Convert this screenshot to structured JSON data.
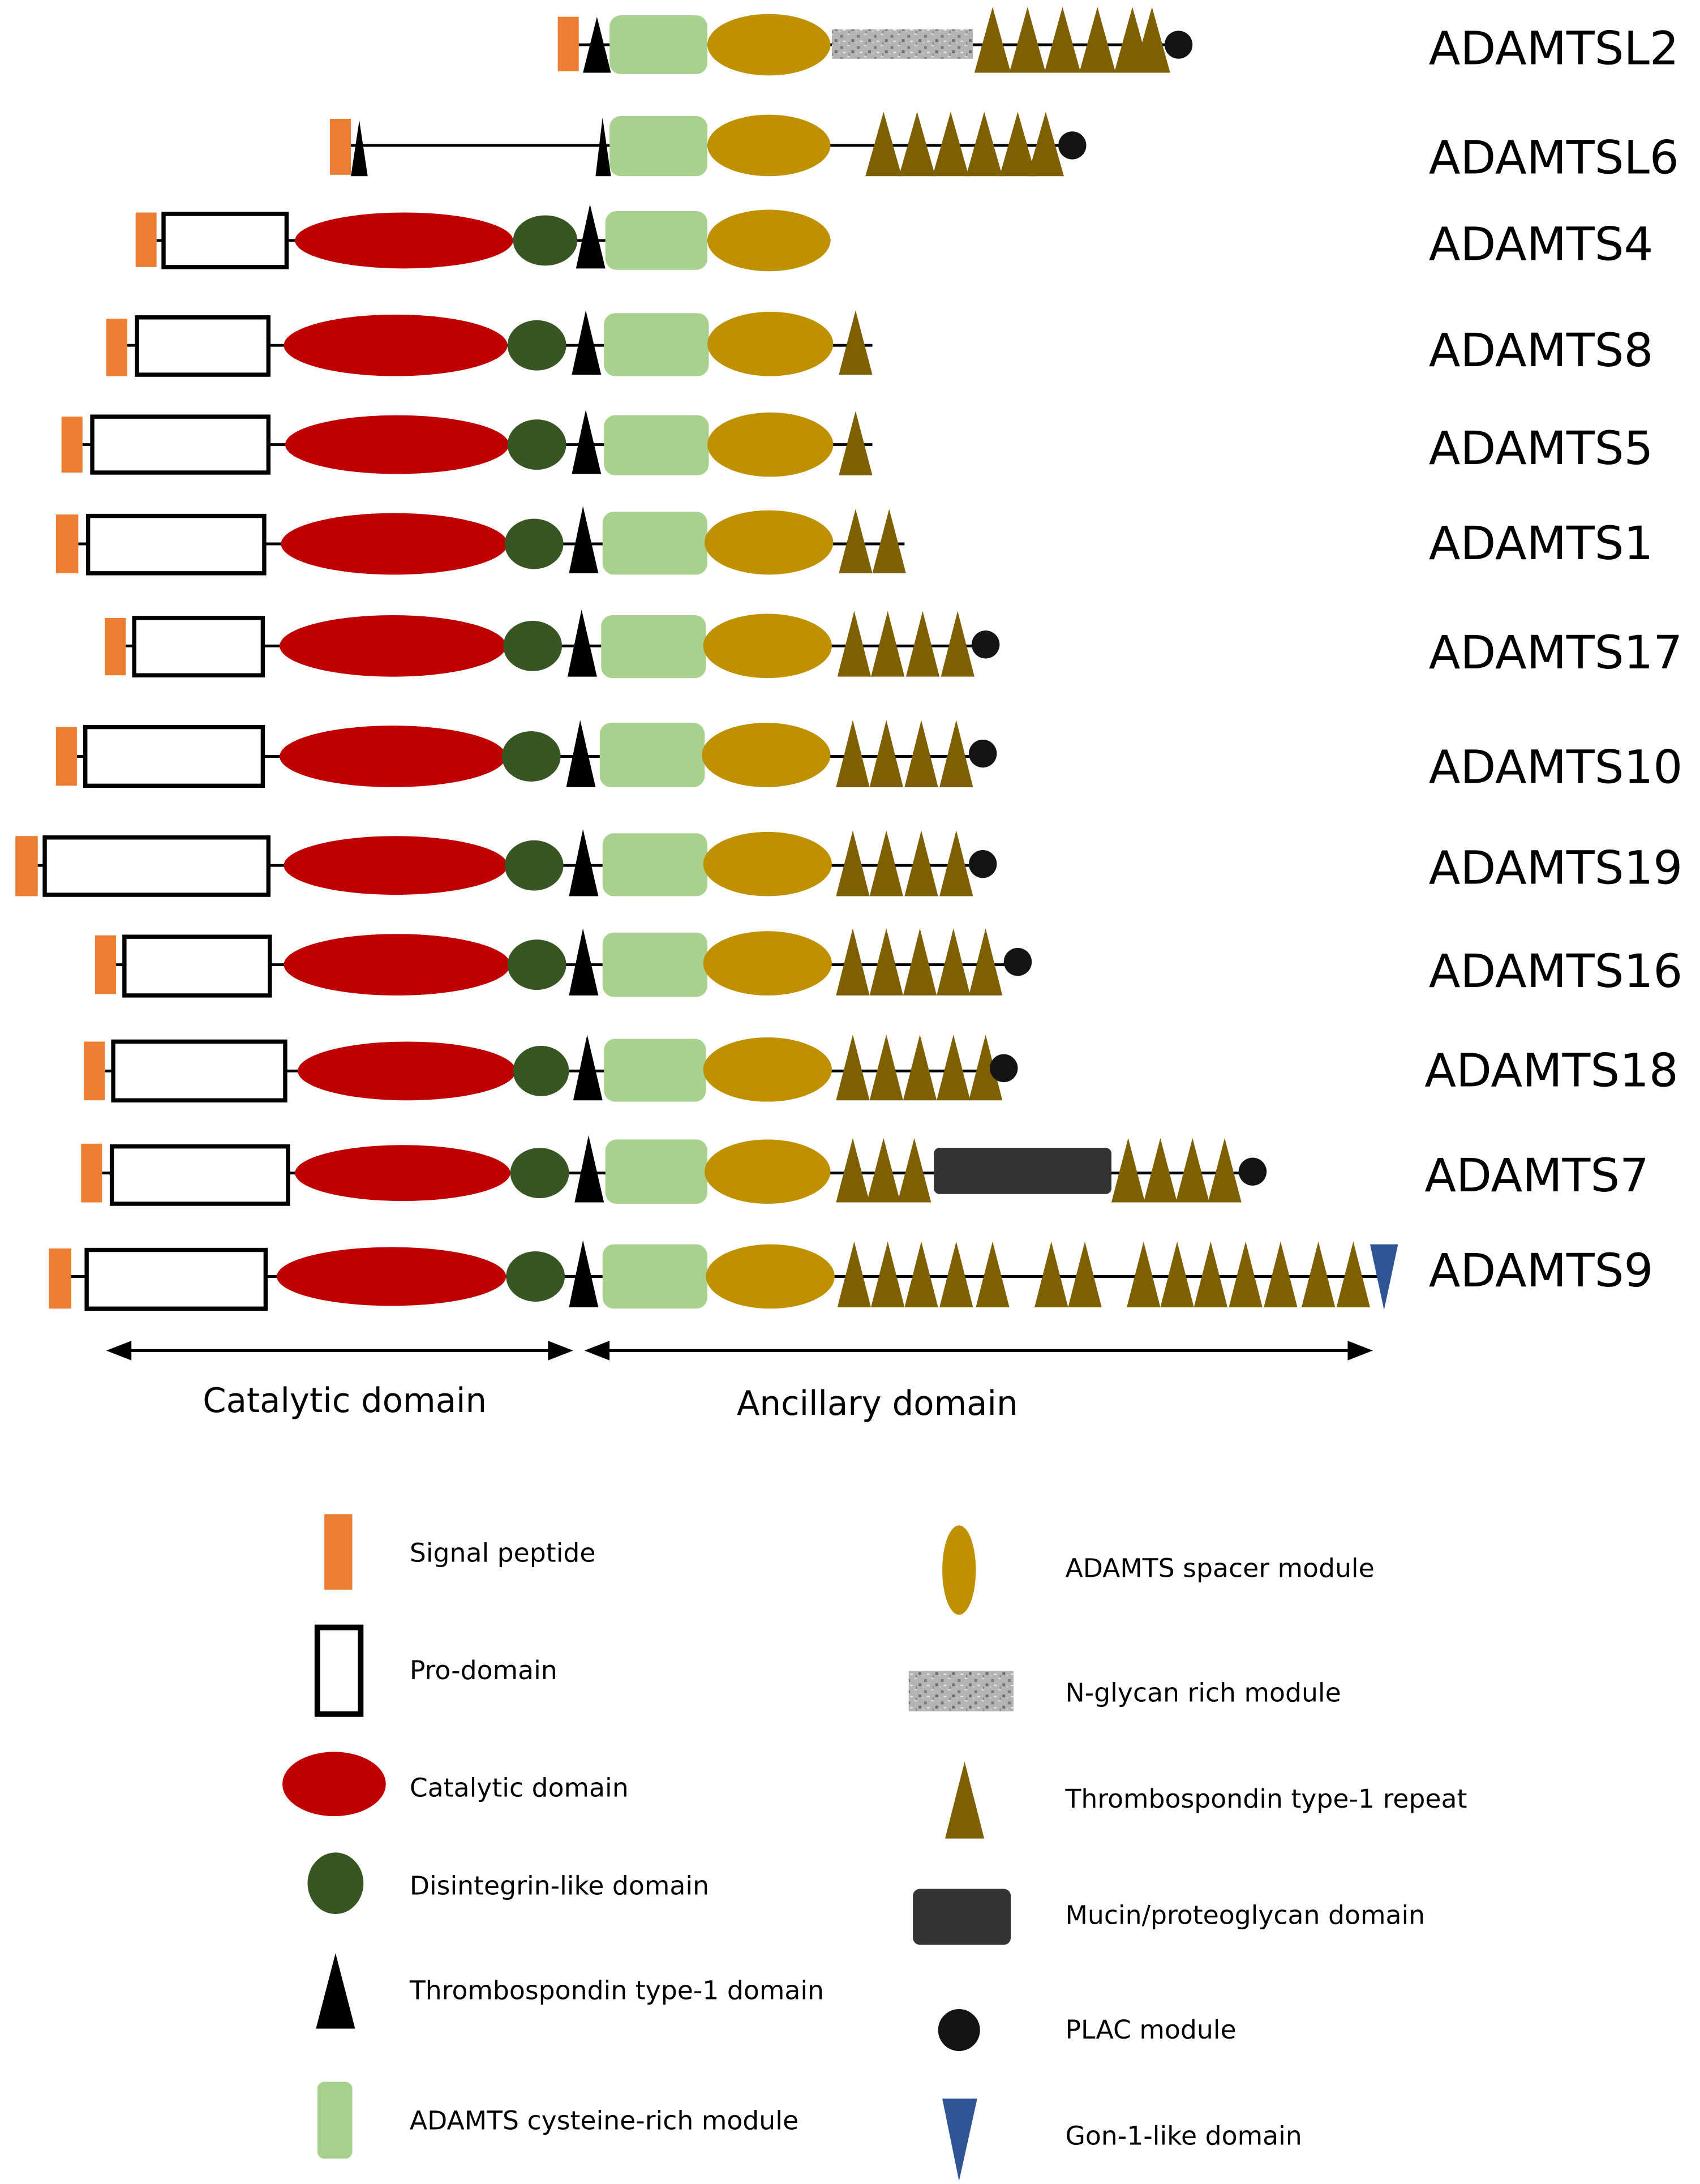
{
  "colors": {
    "signal_peptide": "#ED7D31",
    "prodomain_stroke": "#000000",
    "catalytic": "#C00000",
    "disintegrin": "#375623",
    "tsp1_domain": "#000000",
    "cys_rich": "#A9D18E",
    "spacer": "#BF9000",
    "nglycan": "#A6A6A6",
    "tsr": "#7F6000",
    "mucin": "#333333",
    "plac": "#141414",
    "gon1": "#2F5597"
  },
  "proteins": [
    {
      "name": "ADAMTSL2"
    },
    {
      "name": "ADAMTSL6"
    },
    {
      "name": "ADAMTS4"
    },
    {
      "name": "ADAMTS8"
    },
    {
      "name": "ADAMTS5"
    },
    {
      "name": "ADAMTS1"
    },
    {
      "name": "ADAMTS17"
    },
    {
      "name": "ADAMTS10"
    },
    {
      "name": "ADAMTS19"
    },
    {
      "name": "ADAMTS16"
    },
    {
      "name": "ADAMTS18"
    },
    {
      "name": "ADAMTS7"
    },
    {
      "name": "ADAMTS9"
    }
  ],
  "domain_spans": {
    "catalytic": "Catalytic domain",
    "ancillary": "Ancillary domain"
  },
  "legend": {
    "signal_peptide": "Signal peptide",
    "prodomain": "Pro-domain",
    "catalytic": "Catalytic domain",
    "disintegrin": "Disintegrin-like domain",
    "tsp1_domain": "Thrombospondin type-1 domain",
    "cys_rich": "ADAMTS cysteine-rich module",
    "spacer": "ADAMTS spacer module",
    "nglycan": "N-glycan rich module",
    "tsr": "Thrombospondin type-1 repeat",
    "mucin": "Mucin/proteoglycan domain",
    "plac": "PLAC module",
    "gon1": "Gon-1-like domain"
  }
}
